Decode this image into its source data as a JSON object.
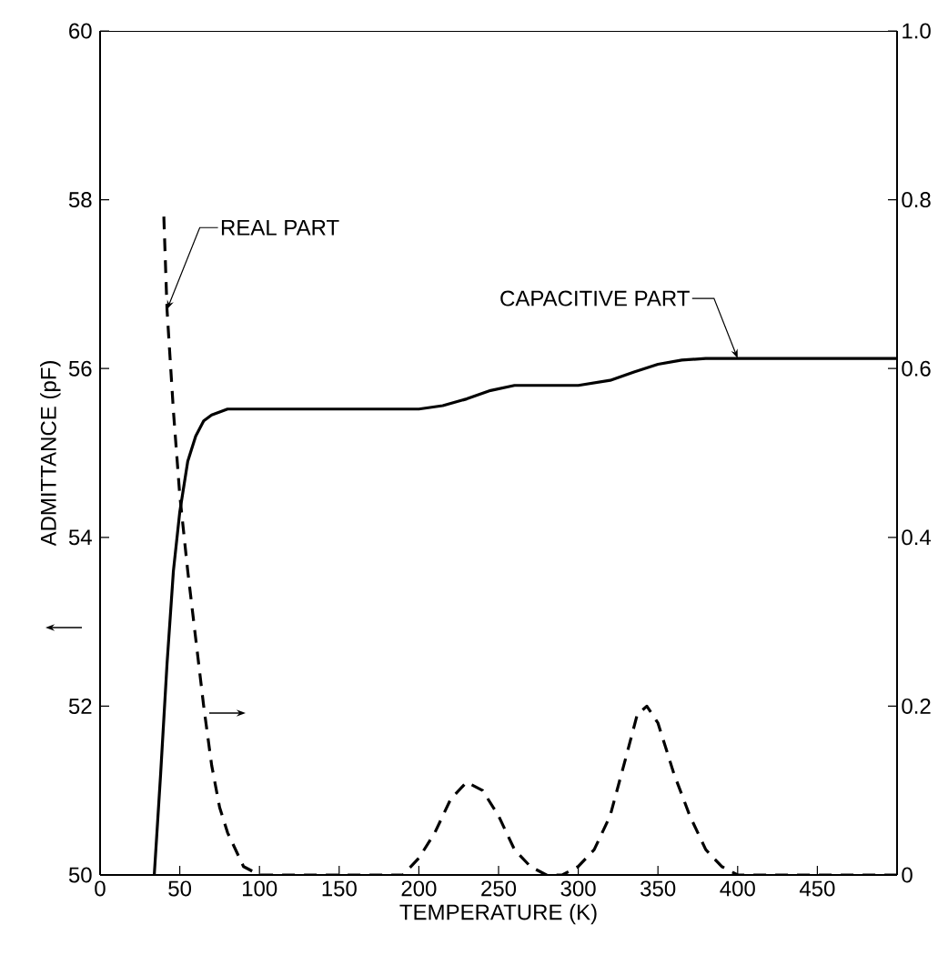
{
  "chart_data": {
    "type": "line",
    "xlabel": "TEMPERATURE (K)",
    "ylabel": "ADMITTANCE (pF)",
    "xlim": [
      0,
      500
    ],
    "xticks": [
      0,
      50,
      100,
      150,
      200,
      250,
      300,
      350,
      400,
      450
    ],
    "ylim": [
      50,
      60
    ],
    "yticks": [
      50,
      52,
      54,
      56,
      58,
      60
    ],
    "y2lim": [
      0,
      1
    ],
    "y2ticks": [
      0,
      0.2,
      0.4,
      0.6,
      0.8,
      {
        "value": 1,
        "label": "1.0"
      }
    ],
    "series": [
      {
        "name": "CAPACITIVE PART",
        "color": "#000000",
        "line_style": "solid",
        "x": [
          34,
          38,
          42,
          46,
          50,
          55,
          60,
          65,
          70,
          80,
          90,
          100,
          150,
          200,
          215,
          230,
          245,
          260,
          280,
          300,
          320,
          335,
          350,
          365,
          380,
          400,
          450,
          500
        ],
        "values": [
          50,
          51.2,
          52.5,
          53.6,
          54.3,
          54.9,
          55.2,
          55.38,
          55.45,
          55.52,
          55.52,
          55.52,
          55.52,
          55.52,
          55.56,
          55.64,
          55.74,
          55.8,
          55.8,
          55.8,
          55.86,
          55.96,
          56.05,
          56.1,
          56.12,
          56.12,
          56.12,
          56.12
        ]
      },
      {
        "name": "REAL PART",
        "color": "#000000",
        "line_style": "dashed",
        "axis": "y2",
        "x": [
          40,
          42,
          46,
          50,
          55,
          60,
          65,
          70,
          75,
          80,
          90,
          100,
          150,
          190,
          200,
          210,
          220,
          230,
          240,
          250,
          260,
          270,
          280,
          290,
          300,
          310,
          320,
          330,
          337,
          343,
          350,
          360,
          370,
          380,
          390,
          400,
          450,
          500
        ],
        "values": [
          0.78,
          0.67,
          0.55,
          0.45,
          0.36,
          0.28,
          0.2,
          0.13,
          0.08,
          0.05,
          0.01,
          0,
          0,
          0,
          0.02,
          0.05,
          0.09,
          0.11,
          0.1,
          0.07,
          0.03,
          0.01,
          0,
          0,
          0.01,
          0.03,
          0.07,
          0.14,
          0.19,
          0.2,
          0.18,
          0.12,
          0.07,
          0.03,
          0.01,
          0,
          0,
          0
        ]
      }
    ]
  }
}
